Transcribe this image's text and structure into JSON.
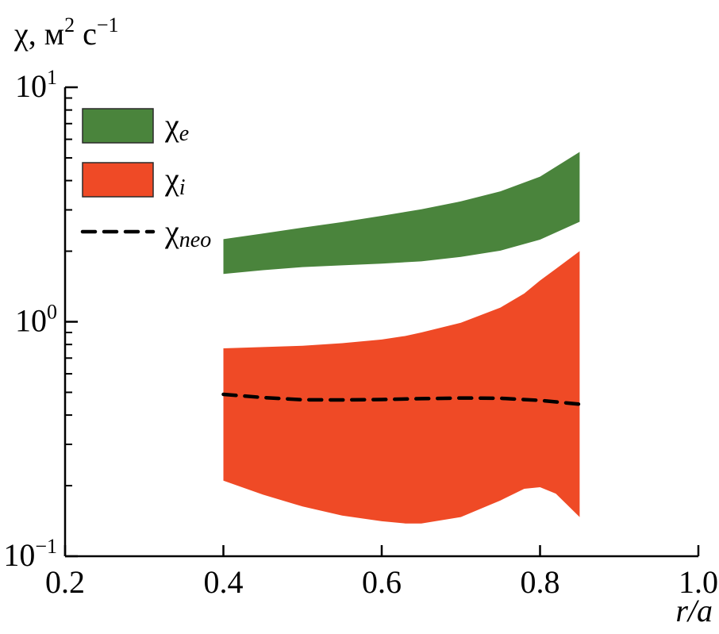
{
  "chart_data": {
    "type": "area",
    "title": "",
    "xlabel": "r/a",
    "ylabel": "χ, м² с⁻¹",
    "ylabel_parts": {
      "base": "χ, м",
      "exp1": "2",
      "mid": " с",
      "exp2": "−1"
    },
    "xscale": "linear",
    "yscale": "log",
    "xlim": [
      0.2,
      1.0
    ],
    "ylim": [
      0.1,
      10
    ],
    "xticks": [
      0.2,
      0.4,
      0.6,
      0.8,
      1.0
    ],
    "xtick_labels": [
      "0.2",
      "0.4",
      "0.6",
      "0.8",
      "1.0"
    ],
    "yticks_major": [
      {
        "value": 0.1,
        "base": "10",
        "exp": "−1"
      },
      {
        "value": 1,
        "base": "10",
        "exp": "0"
      },
      {
        "value": 10,
        "base": "10",
        "exp": "1"
      }
    ],
    "grid": false,
    "legend_position": "top-left",
    "series": [
      {
        "name": "χ_e",
        "label_base": "χ",
        "label_sub": "e",
        "kind": "band",
        "color": "#4a843c",
        "x": [
          0.4,
          0.45,
          0.5,
          0.55,
          0.6,
          0.65,
          0.7,
          0.75,
          0.8,
          0.85
        ],
        "lower": [
          1.6,
          1.66,
          1.71,
          1.74,
          1.77,
          1.81,
          1.89,
          2.01,
          2.24,
          2.67
        ],
        "upper": [
          2.25,
          2.38,
          2.52,
          2.66,
          2.83,
          3.02,
          3.26,
          3.6,
          4.16,
          5.3
        ]
      },
      {
        "name": "χ_i",
        "label_base": "χ",
        "label_sub": "i",
        "kind": "band",
        "color": "#ef4a26",
        "x": [
          0.4,
          0.45,
          0.5,
          0.55,
          0.6,
          0.63,
          0.65,
          0.7,
          0.75,
          0.78,
          0.8,
          0.82,
          0.85
        ],
        "lower": [
          0.21,
          0.183,
          0.163,
          0.149,
          0.141,
          0.138,
          0.138,
          0.147,
          0.173,
          0.194,
          0.197,
          0.185,
          0.147
        ],
        "upper": [
          0.77,
          0.78,
          0.79,
          0.81,
          0.84,
          0.87,
          0.9,
          0.99,
          1.15,
          1.32,
          1.5,
          1.68,
          2.0
        ]
      },
      {
        "name": "χ_neo",
        "label_base": "χ",
        "label_sub": "neo",
        "kind": "line",
        "style": "dashed",
        "color": "#000000",
        "x": [
          0.4,
          0.45,
          0.5,
          0.55,
          0.6,
          0.65,
          0.7,
          0.75,
          0.8,
          0.85
        ],
        "values": [
          0.49,
          0.475,
          0.465,
          0.464,
          0.466,
          0.47,
          0.473,
          0.472,
          0.462,
          0.445
        ]
      }
    ]
  }
}
